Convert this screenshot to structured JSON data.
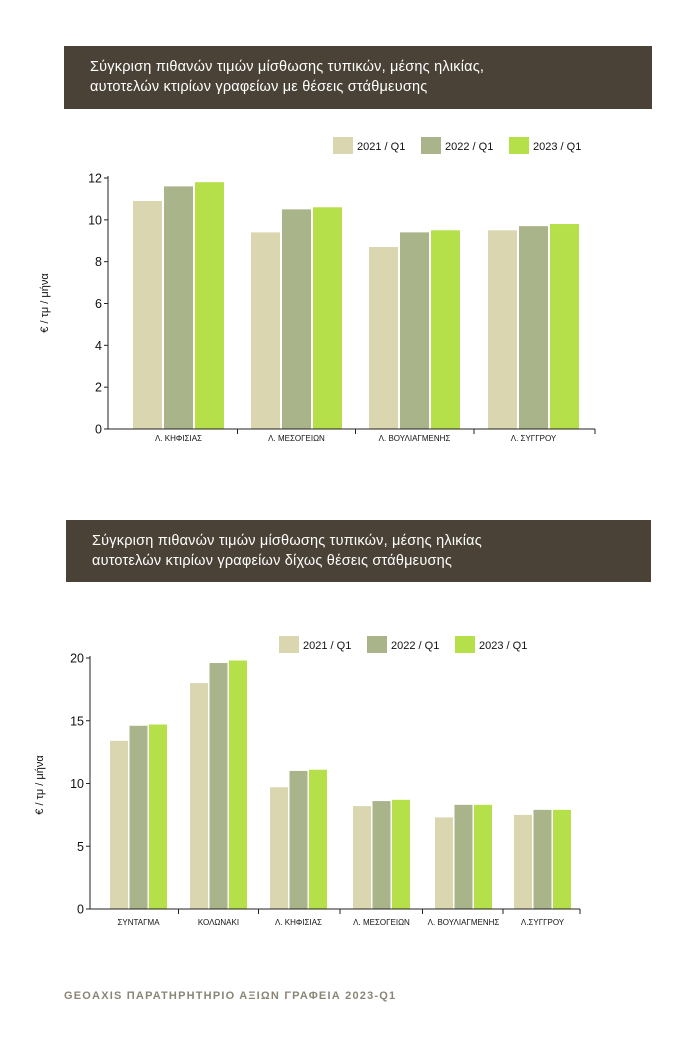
{
  "chart_data": [
    {
      "type": "bar",
      "title": "Σύγκριση πιθανών τιμών μίσθωσης τυπικών, μέσης ηλικίας, αυτοτελών κτιρίων γραφείων με  θέσεις στάθμευσης",
      "title_lines": [
        "Σύγκριση πιθανών τιμών μίσθωσης τυπικών, μέσης ηλικίας,",
        "αυτοτελών κτιρίων γραφείων με  θέσεις στάθμευσης"
      ],
      "ylabel": "€ / τμ / μήνα",
      "xlabel": "",
      "ylim": [
        0,
        12
      ],
      "yticks": [
        "0",
        "2",
        "4",
        "6",
        "8",
        "10",
        "12"
      ],
      "categories": [
        "Λ. ΚΗΦΙΣΙΑΣ",
        "Λ. ΜΕΣΟΓΕΙΩΝ",
        "Λ. ΒΟΥΛΙΑΓΜΕΝΗΣ",
        "Λ. ΣΥΓΓΡΟΥ"
      ],
      "series": [
        {
          "name": "2021 / Q1",
          "color": "#d9d6b0",
          "values": [
            10.9,
            9.4,
            8.7,
            9.5
          ]
        },
        {
          "name": "2022 / Q1",
          "color": "#aab48a",
          "values": [
            11.6,
            10.5,
            9.4,
            9.7
          ]
        },
        {
          "name": "2023 / Q1",
          "color": "#b5e04a",
          "values": [
            11.8,
            10.6,
            9.5,
            9.8
          ]
        }
      ],
      "legend": "top-right"
    },
    {
      "type": "bar",
      "title": "Σύγκριση πιθανών τιμών μίσθωσης τυπικών, μέσης ηλικίας αυτοτελών κτιρίων γραφείων δίχως θέσεις στάθμευσης",
      "title_lines": [
        "Σύγκριση πιθανών τιμών μίσθωσης τυπικών, μέσης ηλικίας",
        "αυτοτελών κτιρίων γραφείων δίχως θέσεις στάθμευσης"
      ],
      "ylabel": "€ / τμ / μήνα",
      "xlabel": "",
      "ylim": [
        0,
        20
      ],
      "yticks": [
        "0",
        "5",
        "10",
        "15",
        "20"
      ],
      "categories": [
        "ΣΥΝΤΑΓΜΑ",
        "ΚΟΛΩΝΑΚΙ",
        "Λ. ΚΗΦΙΣΙΑΣ",
        "Λ. ΜΕΣΟΓΕΙΩΝ",
        "Λ. ΒΟΥΛΙΑΓΜΕΝΗΣ",
        "Λ.ΣΥΓΓΡΟΥ"
      ],
      "series": [
        {
          "name": "2021 / Q1",
          "color": "#d9d6b0",
          "values": [
            13.4,
            18.0,
            9.7,
            8.2,
            7.3,
            7.5
          ]
        },
        {
          "name": "2022 / Q1",
          "color": "#aab48a",
          "values": [
            14.6,
            19.6,
            11.0,
            8.6,
            8.3,
            7.9
          ]
        },
        {
          "name": "2023 / Q1",
          "color": "#b5e04a",
          "values": [
            14.7,
            19.8,
            11.1,
            8.7,
            8.3,
            7.9
          ]
        }
      ],
      "legend": "top-right"
    }
  ],
  "footer": "GEOAXIS ΠΑΡΑΤΗΡΗΤΗΡΙΟ ΑΞΙΩΝ ΓΡΑΦΕΙΑ  2023-Q1"
}
